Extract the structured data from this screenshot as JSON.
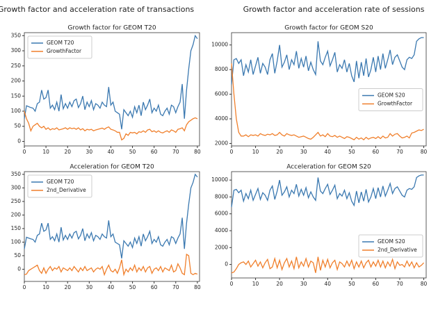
{
  "column_titles": [
    "Growth factor and acceleration rate of transactions",
    "Growth factor and acceleration rate of sessions"
  ],
  "chart_data": [
    {
      "type": "line",
      "title": "Growth factor for GEOM T20",
      "legend": "upper left",
      "x": [
        0,
        1,
        2,
        3,
        4,
        5,
        6,
        7,
        8,
        9,
        10,
        11,
        12,
        13,
        14,
        15,
        16,
        17,
        18,
        19,
        20,
        21,
        22,
        23,
        24,
        25,
        26,
        27,
        28,
        29,
        30,
        31,
        32,
        33,
        34,
        35,
        36,
        37,
        38,
        39,
        40,
        41,
        42,
        43,
        44,
        45,
        46,
        47,
        48,
        49,
        50,
        51,
        52,
        53,
        54,
        55,
        56,
        57,
        58,
        59,
        60,
        61,
        62,
        63,
        64,
        65,
        66,
        67,
        68,
        69,
        70,
        71,
        72,
        73,
        74,
        75,
        76,
        77,
        78,
        79,
        80
      ],
      "xlim": [
        0,
        81
      ],
      "xticks": [
        0,
        10,
        20,
        30,
        40,
        50,
        60,
        70,
        80
      ],
      "ylim": [
        -15,
        360
      ],
      "yticks": [
        0,
        50,
        100,
        150,
        200,
        250,
        300,
        350
      ],
      "series": [
        {
          "name": "GEOM T20",
          "color": "#3a78b0",
          "values": [
            75,
            118,
            115,
            112,
            110,
            100,
            125,
            130,
            170,
            140,
            145,
            170,
            110,
            120,
            105,
            130,
            100,
            155,
            108,
            125,
            110,
            130,
            115,
            135,
            140,
            112,
            125,
            150,
            105,
            130,
            115,
            135,
            105,
            125,
            120,
            110,
            130,
            120,
            115,
            180,
            120,
            130,
            100,
            95,
            90,
            40,
            105,
            95,
            85,
            100,
            80,
            115,
            95,
            120,
            85,
            130,
            105,
            120,
            140,
            95,
            110,
            100,
            120,
            90,
            85,
            100,
            110,
            90,
            120,
            115,
            95,
            115,
            130,
            190,
            75,
            170,
            240,
            300,
            320,
            350,
            340
          ]
        },
        {
          "name": "GrowthFactor",
          "color": "#f07f2b",
          "values": [
            100,
            75,
            60,
            35,
            50,
            55,
            60,
            50,
            45,
            50,
            40,
            45,
            38,
            42,
            40,
            45,
            38,
            40,
            42,
            45,
            40,
            45,
            42,
            44,
            40,
            45,
            38,
            42,
            35,
            40,
            38,
            40,
            35,
            38,
            40,
            42,
            44,
            40,
            45,
            48,
            40,
            38,
            35,
            30,
            30,
            5,
            10,
            25,
            20,
            30,
            28,
            30,
            25,
            32,
            30,
            35,
            30,
            38,
            40,
            32,
            35,
            30,
            35,
            30,
            28,
            32,
            35,
            30,
            38,
            35,
            30,
            40,
            42,
            45,
            35,
            55,
            65,
            70,
            75,
            78,
            75
          ]
        }
      ]
    },
    {
      "type": "line",
      "title": "Acceleration for GEOM T20",
      "legend": "upper left",
      "x": [
        0,
        1,
        2,
        3,
        4,
        5,
        6,
        7,
        8,
        9,
        10,
        11,
        12,
        13,
        14,
        15,
        16,
        17,
        18,
        19,
        20,
        21,
        22,
        23,
        24,
        25,
        26,
        27,
        28,
        29,
        30,
        31,
        32,
        33,
        34,
        35,
        36,
        37,
        38,
        39,
        40,
        41,
        42,
        43,
        44,
        45,
        46,
        47,
        48,
        49,
        50,
        51,
        52,
        53,
        54,
        55,
        56,
        57,
        58,
        59,
        60,
        61,
        62,
        63,
        64,
        65,
        66,
        67,
        68,
        69,
        70,
        71,
        72,
        73,
        74,
        75,
        76,
        77,
        78,
        79,
        80
      ],
      "xlim": [
        0,
        81
      ],
      "xticks": [
        0,
        10,
        20,
        30,
        40,
        50,
        60,
        70,
        80
      ],
      "ylim": [
        -45,
        360
      ],
      "yticks": [
        0,
        50,
        100,
        150,
        200,
        250,
        300,
        350
      ],
      "series": [
        {
          "name": "GEOM T20",
          "color": "#3a78b0",
          "values": [
            75,
            118,
            115,
            112,
            110,
            100,
            125,
            130,
            170,
            140,
            145,
            170,
            110,
            120,
            105,
            130,
            100,
            155,
            108,
            125,
            110,
            130,
            115,
            135,
            140,
            112,
            125,
            150,
            105,
            130,
            115,
            135,
            105,
            125,
            120,
            110,
            130,
            120,
            115,
            180,
            120,
            130,
            100,
            95,
            90,
            40,
            105,
            95,
            85,
            100,
            80,
            115,
            95,
            120,
            85,
            130,
            105,
            120,
            140,
            95,
            110,
            100,
            120,
            90,
            85,
            100,
            110,
            90,
            120,
            115,
            95,
            115,
            130,
            190,
            75,
            170,
            240,
            300,
            320,
            350,
            340
          ]
        },
        {
          "name": "2nd_Derivative",
          "color": "#f07f2b",
          "values": [
            -20,
            -18,
            -5,
            0,
            5,
            10,
            15,
            -5,
            -15,
            5,
            -15,
            0,
            10,
            -5,
            5,
            0,
            10,
            -10,
            5,
            0,
            -5,
            5,
            -5,
            10,
            0,
            -10,
            5,
            -5,
            10,
            -5,
            0,
            5,
            -10,
            0,
            5,
            0,
            10,
            -20,
            0,
            15,
            -5,
            -10,
            0,
            -15,
            5,
            35,
            -20,
            0,
            -10,
            5,
            -5,
            15,
            -10,
            5,
            -5,
            10,
            -10,
            5,
            10,
            -15,
            0,
            5,
            -5,
            10,
            -10,
            5,
            0,
            -5,
            15,
            -10,
            -5,
            20,
            5,
            -15,
            -20,
            55,
            50,
            -15,
            -20,
            -15,
            -18
          ]
        }
      ]
    },
    {
      "type": "line",
      "title": "Growth factor for GEOM S20",
      "legend": "center right",
      "x": [
        0,
        1,
        2,
        3,
        4,
        5,
        6,
        7,
        8,
        9,
        10,
        11,
        12,
        13,
        14,
        15,
        16,
        17,
        18,
        19,
        20,
        21,
        22,
        23,
        24,
        25,
        26,
        27,
        28,
        29,
        30,
        31,
        32,
        33,
        34,
        35,
        36,
        37,
        38,
        39,
        40,
        41,
        42,
        43,
        44,
        45,
        46,
        47,
        48,
        49,
        50,
        51,
        52,
        53,
        54,
        55,
        56,
        57,
        58,
        59,
        60,
        61,
        62,
        63,
        64,
        65,
        66,
        67,
        68,
        69,
        70,
        71,
        72,
        73,
        74,
        75,
        76,
        77,
        78,
        79,
        80
      ],
      "xlim": [
        0,
        81
      ],
      "xticks": [
        0,
        10,
        20,
        30,
        40,
        50,
        60,
        70,
        80
      ],
      "ylim": [
        1800,
        11000
      ],
      "yticks": [
        2000,
        4000,
        6000,
        8000,
        10000
      ],
      "series": [
        {
          "name": "GEOM S20",
          "color": "#3a78b0",
          "values": [
            6800,
            8800,
            8900,
            8500,
            8800,
            7500,
            8400,
            7800,
            8800,
            7600,
            8300,
            9000,
            7700,
            8500,
            8200,
            7600,
            8800,
            9300,
            7700,
            8700,
            10000,
            8200,
            8600,
            9200,
            8000,
            8800,
            8400,
            9500,
            8100,
            8900,
            8200,
            9100,
            7900,
            8600,
            8000,
            7600,
            10300,
            8700,
            8400,
            9000,
            9500,
            8300,
            8800,
            9400,
            7800,
            8400,
            8100,
            8800,
            7800,
            8500,
            7500,
            7000,
            8700,
            7300,
            8600,
            7500,
            8900,
            7400,
            8000,
            9000,
            7800,
            9100,
            8000,
            9300,
            8100,
            8800,
            9600,
            8400,
            9000,
            9200,
            8700,
            8200,
            8000,
            8800,
            9000,
            8900,
            9200,
            10300,
            10500,
            10600,
            10600
          ]
        },
        {
          "name": "GrowthFactor",
          "color": "#f07f2b",
          "values": [
            8500,
            6000,
            4000,
            2900,
            2600,
            2600,
            2700,
            2550,
            2700,
            2650,
            2700,
            2600,
            2800,
            2700,
            2650,
            2750,
            2700,
            2800,
            2650,
            2700,
            2900,
            2700,
            2600,
            2800,
            2700,
            2650,
            2700,
            2600,
            2500,
            2550,
            2600,
            2500,
            2400,
            2350,
            2500,
            2700,
            2900,
            2600,
            2700,
            2550,
            2800,
            2600,
            2550,
            2650,
            2500,
            2600,
            2500,
            2400,
            2550,
            2500,
            2400,
            2300,
            2500,
            2350,
            2450,
            2300,
            2500,
            2350,
            2450,
            2500,
            2400,
            2550,
            2400,
            2600,
            2450,
            2500,
            2800,
            2600,
            2750,
            2800,
            2600,
            2450,
            2500,
            2600,
            2450,
            2850,
            2900,
            3000,
            3100,
            3050,
            3150
          ]
        }
      ]
    },
    {
      "type": "line",
      "title": "Acceleration for GEOM S20",
      "legend": "lower right",
      "x": [
        0,
        1,
        2,
        3,
        4,
        5,
        6,
        7,
        8,
        9,
        10,
        11,
        12,
        13,
        14,
        15,
        16,
        17,
        18,
        19,
        20,
        21,
        22,
        23,
        24,
        25,
        26,
        27,
        28,
        29,
        30,
        31,
        32,
        33,
        34,
        35,
        36,
        37,
        38,
        39,
        40,
        41,
        42,
        43,
        44,
        45,
        46,
        47,
        48,
        49,
        50,
        51,
        52,
        53,
        54,
        55,
        56,
        57,
        58,
        59,
        60,
        61,
        62,
        63,
        64,
        65,
        66,
        67,
        68,
        69,
        70,
        71,
        72,
        73,
        74,
        75,
        76,
        77,
        78,
        79,
        80
      ],
      "xlim": [
        0,
        81
      ],
      "xticks": [
        0,
        10,
        20,
        30,
        40,
        50,
        60,
        70,
        80
      ],
      "ylim": [
        -1600,
        11000
      ],
      "yticks": [
        0,
        2000,
        4000,
        6000,
        8000,
        10000
      ],
      "series": [
        {
          "name": "GEOM S20",
          "color": "#3a78b0",
          "values": [
            6800,
            8800,
            8900,
            8500,
            8800,
            7500,
            8400,
            7800,
            8800,
            7600,
            8300,
            9000,
            7700,
            8500,
            8200,
            7600,
            8800,
            9300,
            7700,
            8700,
            10000,
            8200,
            8600,
            9200,
            8000,
            8800,
            8400,
            9500,
            8100,
            8900,
            8200,
            9100,
            7900,
            8600,
            8000,
            7600,
            10300,
            8700,
            8400,
            9000,
            9500,
            8300,
            8800,
            9400,
            7800,
            8400,
            8100,
            8800,
            7800,
            8500,
            7500,
            7000,
            8700,
            7300,
            8600,
            7500,
            8900,
            7400,
            8000,
            9000,
            7800,
            9100,
            8000,
            9300,
            8100,
            8800,
            9600,
            8400,
            9000,
            9200,
            8700,
            8200,
            8000,
            8800,
            9000,
            8900,
            9200,
            10300,
            10500,
            10600,
            10600
          ]
        },
        {
          "name": "2nd_Derivative",
          "color": "#f07f2b",
          "values": [
            -1000,
            -900,
            -500,
            0,
            200,
            300,
            0,
            400,
            -300,
            100,
            500,
            -200,
            300,
            -400,
            200,
            600,
            -500,
            -300,
            700,
            -400,
            500,
            -600,
            200,
            700,
            -300,
            400,
            -500,
            900,
            -400,
            300,
            -200,
            700,
            -300,
            400,
            200,
            -1000,
            900,
            -700,
            500,
            -300,
            600,
            -400,
            200,
            500,
            -600,
            300,
            100,
            -300,
            400,
            -200,
            500,
            -500,
            300,
            -300,
            400,
            -400,
            200,
            500,
            -300,
            300,
            -200,
            500,
            -300,
            400,
            -400,
            300,
            -200,
            600,
            -500,
            300,
            -100,
            0,
            -300,
            400,
            -200,
            300,
            -400,
            200,
            -300,
            -100,
            200
          ]
        }
      ]
    }
  ]
}
